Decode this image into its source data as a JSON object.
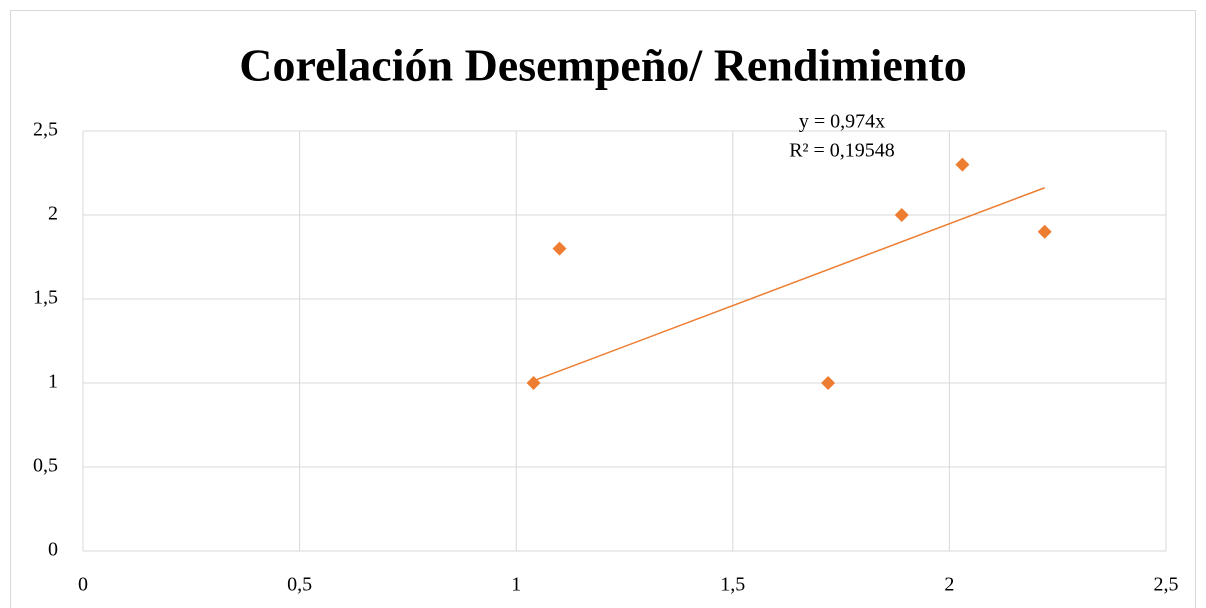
{
  "chart_data": {
    "type": "scatter",
    "title": "Corelación Desempeño/ Rendimiento",
    "x": [
      1.04,
      1.1,
      1.72,
      1.89,
      2.03,
      2.22
    ],
    "values": [
      1.0,
      1.8,
      1.0,
      2.0,
      2.3,
      1.9
    ],
    "color": "#ed7d31",
    "xlim": [
      0,
      2.5
    ],
    "ylim": [
      0,
      2.5
    ],
    "xticks": [
      0,
      {
        "value": 0.5,
        "label": "0,5"
      },
      1,
      {
        "value": 1.5,
        "label": "1,5"
      },
      2,
      {
        "value": 2.5,
        "label": "2,5"
      }
    ],
    "yticks": [
      0,
      {
        "value": 0.5,
        "label": "0,5"
      },
      1,
      {
        "value": 1.5,
        "label": "1,5"
      },
      2,
      {
        "value": 2.5,
        "label": "2,5"
      }
    ],
    "grid": true,
    "trendline": {
      "slope": 0.974,
      "equation": "y = 0,974x",
      "r2": "R² = 0,19548"
    }
  }
}
